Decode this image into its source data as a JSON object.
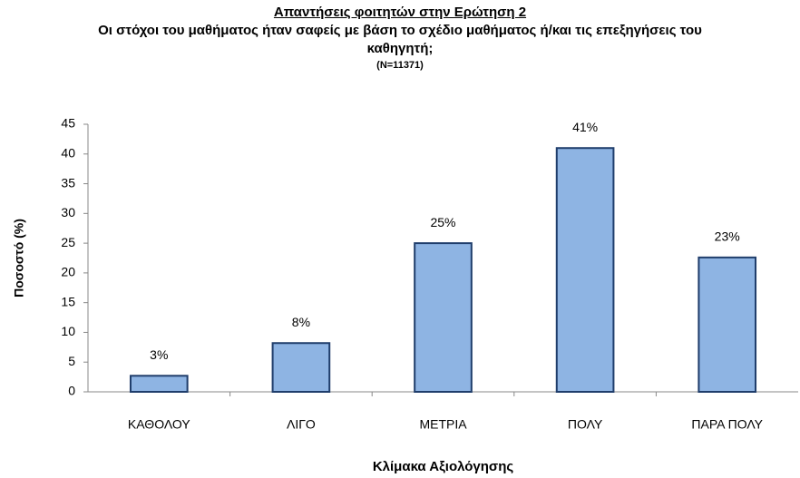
{
  "chart_data": {
    "type": "bar",
    "title": "Απαντήσεις φοιτητών στην Ερώτηση 2",
    "subtitle": "Οι στόχοι του μαθήματος ήταν σαφείς με βάση το σχέδιο μαθήματος ή/και τις επεξηγήσεις του καθηγητή;",
    "note": "(N=11371)",
    "x_label": "Κλίμακα Αξιολόγησης",
    "y_label": "Ποσοστό (%)",
    "categories": [
      "ΚΑΘΟΛΟΥ",
      "ΛΙΓΟ",
      "ΜΕΤΡΙΑ",
      "ΠΟΛΥ",
      "ΠΑΡΑ ΠΟΛΥ"
    ],
    "values": [
      2.7,
      8.2,
      25.0,
      41,
      22.6
    ],
    "value_labels": [
      "3%",
      "8%",
      "25%",
      "41%",
      "23%"
    ],
    "color": "#8eb4e3",
    "edge_color": "#1f3d6b",
    "ylim": [
      0,
      45
    ],
    "yticks": [
      0,
      5,
      10,
      15,
      20,
      25,
      30,
      35,
      40,
      45
    ],
    "grid": false
  }
}
